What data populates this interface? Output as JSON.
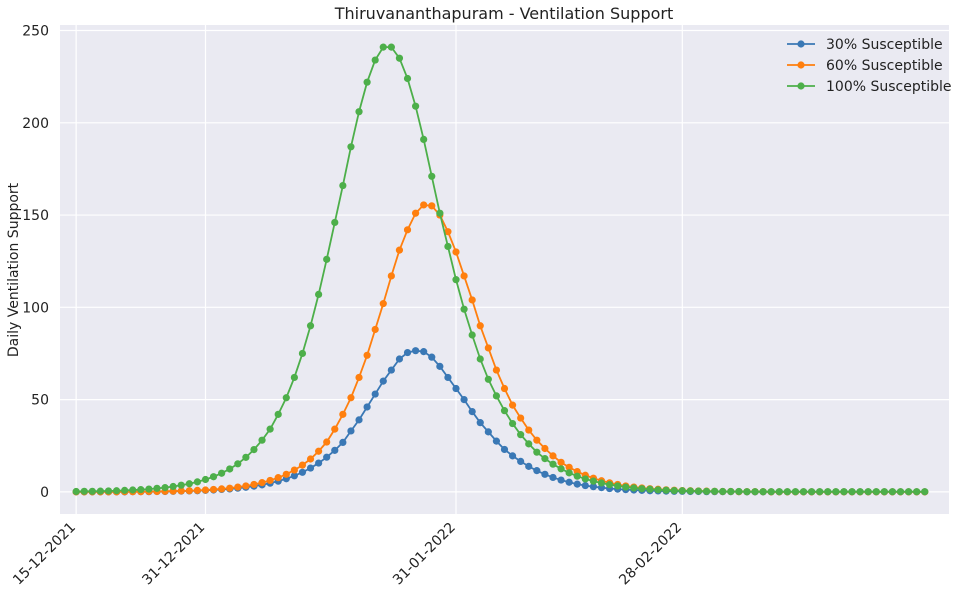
{
  "chart_data": {
    "type": "line",
    "title": "Thiruvananthapuram - Ventilation Support",
    "xlabel": "",
    "ylabel": "Daily Ventilation Support",
    "x_start": "2021-12-15",
    "x_ticks": [
      {
        "date": "2021-12-15",
        "label": "15-12-2021"
      },
      {
        "date": "2021-12-31",
        "label": "31-12-2021"
      },
      {
        "date": "2022-01-31",
        "label": "31-01-2022"
      },
      {
        "date": "2022-02-28",
        "label": "28-02-2022"
      }
    ],
    "xlim": [
      "2021-12-13",
      "2022-04-02"
    ],
    "ylim": [
      -12,
      253
    ],
    "yticks": [
      0,
      50,
      100,
      150,
      200,
      250
    ],
    "grid": true,
    "legend_position": "top-right",
    "series": [
      {
        "name": "30% Susceptible",
        "color": "#3a78b5",
        "values": [
          0,
          0,
          0,
          0,
          0,
          0,
          0,
          0.1,
          0.1,
          0.1,
          0.2,
          0.2,
          0.3,
          0.4,
          0.5,
          0.6,
          0.8,
          1,
          1.3,
          1.6,
          2,
          2.5,
          3.1,
          3.8,
          4.7,
          5.8,
          7.1,
          8.7,
          10.6,
          12.9,
          15.6,
          18.8,
          22.5,
          26.8,
          33,
          39,
          46,
          53,
          60,
          66,
          72,
          75.5,
          76.5,
          76,
          73,
          68,
          62,
          56,
          50,
          43.5,
          37.5,
          32.5,
          27.5,
          23,
          19.5,
          16.5,
          13.8,
          11.5,
          9.5,
          7.8,
          6.4,
          5.2,
          4.2,
          3.4,
          2.8,
          2.3,
          1.8,
          1.5,
          1.2,
          1,
          0.8,
          0.6,
          0.5,
          0.4,
          0.3,
          0.3,
          0.2,
          0.2,
          0.1,
          0.1,
          0.1,
          0.1,
          0.1,
          0,
          0,
          0,
          0,
          0,
          0,
          0,
          0,
          0,
          0,
          0,
          0,
          0,
          0,
          0,
          0,
          0,
          0,
          0,
          0,
          0,
          0,
          0
        ]
      },
      {
        "name": "60% Susceptible",
        "color": "#ff7f0e",
        "values": [
          0,
          0,
          0,
          0,
          0,
          0,
          0.1,
          0.1,
          0.1,
          0.2,
          0.2,
          0.3,
          0.4,
          0.5,
          0.6,
          0.8,
          1,
          1.3,
          1.6,
          2,
          2.6,
          3.2,
          4,
          5,
          6.2,
          7.7,
          9.5,
          11.8,
          14.5,
          17.8,
          22,
          27,
          34,
          42,
          51,
          62,
          74,
          88,
          102,
          117,
          131,
          142,
          151,
          155.5,
          155,
          150,
          141,
          130,
          117,
          104,
          90,
          78,
          66,
          56,
          47,
          40,
          33.5,
          28,
          23.5,
          19.5,
          16,
          13.3,
          11,
          9,
          7.4,
          6,
          4.9,
          4,
          3.2,
          2.6,
          2.1,
          1.7,
          1.4,
          1.1,
          0.9,
          0.7,
          0.6,
          0.5,
          0.4,
          0.3,
          0.2,
          0.2,
          0.1,
          0.1,
          0.1,
          0.1,
          0,
          0,
          0,
          0,
          0,
          0,
          0,
          0,
          0,
          0,
          0,
          0,
          0,
          0,
          0,
          0,
          0,
          0,
          0,
          0
        ]
      },
      {
        "name": "100% Susceptible",
        "color": "#4daf4a",
        "values": [
          0.2,
          0.3,
          0.3,
          0.4,
          0.5,
          0.6,
          0.8,
          1,
          1.2,
          1.5,
          1.9,
          2.3,
          2.9,
          3.6,
          4.4,
          5.4,
          6.7,
          8.2,
          10.1,
          12.4,
          15.2,
          18.7,
          22.9,
          28,
          34,
          42,
          51,
          62,
          75,
          90,
          107,
          126,
          146,
          166,
          187,
          206,
          222,
          234,
          241,
          241,
          235,
          224,
          209,
          191,
          171,
          151,
          133,
          115,
          99,
          85,
          72,
          61,
          52,
          44,
          37,
          31,
          26,
          21.5,
          18,
          15,
          12.5,
          10.3,
          8.5,
          7,
          5.8,
          4.8,
          3.9,
          3.2,
          2.6,
          2.1,
          1.7,
          1.4,
          1.1,
          0.9,
          0.7,
          0.6,
          0.5,
          0.4,
          0.3,
          0.3,
          0.2,
          0.2,
          0.2,
          0.1,
          0.1,
          0.1,
          0.1,
          0.1,
          0.1,
          0.1,
          0.1,
          0.1,
          0.1,
          0.1,
          0.1,
          0.1,
          0.1,
          0.1,
          0.1,
          0.1,
          0.1,
          0.1,
          0.1,
          0.1,
          0.1,
          0.1
        ]
      }
    ]
  }
}
